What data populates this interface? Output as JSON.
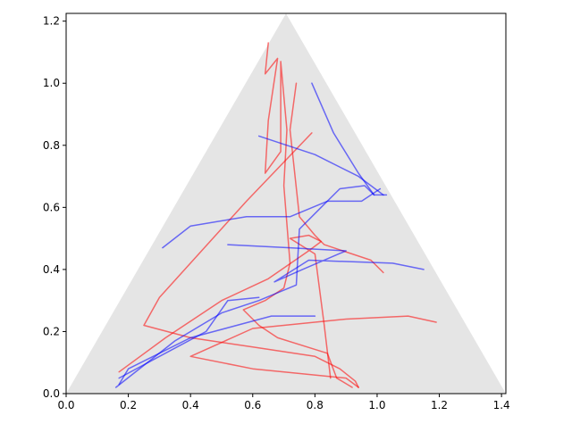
{
  "chart_data": {
    "type": "line",
    "title": "",
    "xlabel": "",
    "ylabel": "",
    "xlim": [
      0.0,
      1.414
    ],
    "ylim": [
      0.0,
      1.225
    ],
    "x_ticks": [
      0.0,
      0.2,
      0.4,
      0.6,
      0.8,
      1.0,
      1.2,
      1.4
    ],
    "x_tick_labels": [
      "0.0",
      "0.2",
      "0.4",
      "0.6",
      "0.8",
      "1.0",
      "1.2",
      "1.4"
    ],
    "y_ticks": [
      0.0,
      0.2,
      0.4,
      0.6,
      0.8,
      1.0,
      1.2
    ],
    "y_tick_labels": [
      "0.0",
      "0.2",
      "0.4",
      "0.6",
      "0.8",
      "1.0",
      "1.2"
    ],
    "grid": false,
    "legend": "none",
    "background_triangle": {
      "vertices": [
        [
          0.0,
          0.0
        ],
        [
          1.414,
          0.0
        ],
        [
          0.707,
          1.2247
        ]
      ],
      "color": "#e5e5e5"
    },
    "series": [
      {
        "color": "#ff0000",
        "opacity": 0.55,
        "points": [
          [
            0.79,
            0.84
          ],
          [
            0.58,
            0.62
          ],
          [
            0.3,
            0.31
          ],
          [
            0.25,
            0.22
          ],
          [
            0.4,
            0.18
          ],
          [
            0.6,
            0.15
          ],
          [
            0.8,
            0.12
          ],
          [
            0.88,
            0.08
          ],
          [
            0.93,
            0.04
          ],
          [
            0.94,
            0.02
          ]
        ]
      },
      {
        "color": "#ff0000",
        "opacity": 0.55,
        "points": [
          [
            0.65,
            1.13
          ],
          [
            0.64,
            1.03
          ],
          [
            0.68,
            1.08
          ],
          [
            0.65,
            0.88
          ],
          [
            0.64,
            0.71
          ],
          [
            0.69,
            0.78
          ],
          [
            0.69,
            1.07
          ],
          [
            0.71,
            0.85
          ],
          [
            0.7,
            0.67
          ],
          [
            0.72,
            0.42
          ],
          [
            0.7,
            0.34
          ],
          [
            0.64,
            0.3
          ],
          [
            0.57,
            0.27
          ],
          [
            0.62,
            0.22
          ],
          [
            0.68,
            0.18
          ],
          [
            0.84,
            0.13
          ],
          [
            0.87,
            0.05
          ],
          [
            0.92,
            0.02
          ]
        ]
      },
      {
        "color": "#ff0000",
        "opacity": 0.55,
        "points": [
          [
            0.74,
            1.0
          ],
          [
            0.72,
            0.85
          ],
          [
            0.75,
            0.57
          ],
          [
            0.8,
            0.51
          ],
          [
            0.83,
            0.48
          ],
          [
            0.98,
            0.43
          ],
          [
            1.02,
            0.39
          ]
        ]
      },
      {
        "color": "#ff0000",
        "opacity": 0.55,
        "points": [
          [
            1.19,
            0.23
          ],
          [
            1.1,
            0.25
          ],
          [
            0.9,
            0.24
          ],
          [
            0.6,
            0.21
          ],
          [
            0.4,
            0.12
          ],
          [
            0.6,
            0.08
          ],
          [
            0.9,
            0.05
          ],
          [
            0.94,
            0.02
          ]
        ]
      },
      {
        "color": "#ff0000",
        "opacity": 0.55,
        "points": [
          [
            0.17,
            0.07
          ],
          [
            0.32,
            0.18
          ],
          [
            0.5,
            0.3
          ],
          [
            0.65,
            0.37
          ],
          [
            0.78,
            0.46
          ],
          [
            0.82,
            0.49
          ],
          [
            0.78,
            0.51
          ],
          [
            0.72,
            0.5
          ],
          [
            0.8,
            0.45
          ],
          [
            0.83,
            0.22
          ],
          [
            0.85,
            0.05
          ]
        ]
      },
      {
        "color": "#0000ff",
        "opacity": 0.55,
        "points": [
          [
            0.79,
            1.0
          ],
          [
            0.86,
            0.84
          ],
          [
            0.94,
            0.71
          ],
          [
            0.99,
            0.64
          ],
          [
            1.03,
            0.64
          ]
        ]
      },
      {
        "color": "#0000ff",
        "opacity": 0.55,
        "points": [
          [
            0.62,
            0.83
          ],
          [
            0.8,
            0.77
          ],
          [
            0.94,
            0.7
          ],
          [
            1.02,
            0.64
          ]
        ]
      },
      {
        "color": "#0000ff",
        "opacity": 0.55,
        "points": [
          [
            0.31,
            0.47
          ],
          [
            0.4,
            0.54
          ],
          [
            0.58,
            0.57
          ],
          [
            0.72,
            0.57
          ],
          [
            0.84,
            0.62
          ],
          [
            0.95,
            0.62
          ],
          [
            1.01,
            0.66
          ]
        ]
      },
      {
        "color": "#0000ff",
        "opacity": 0.55,
        "points": [
          [
            0.17,
            0.05
          ],
          [
            0.3,
            0.12
          ],
          [
            0.45,
            0.2
          ],
          [
            0.52,
            0.3
          ],
          [
            0.62,
            0.31
          ]
        ]
      },
      {
        "color": "#0000ff",
        "opacity": 0.55,
        "points": [
          [
            0.52,
            0.48
          ],
          [
            0.72,
            0.47
          ],
          [
            0.9,
            0.46
          ],
          [
            0.76,
            0.4
          ],
          [
            0.67,
            0.36
          ],
          [
            0.78,
            0.43
          ],
          [
            1.05,
            0.42
          ],
          [
            1.15,
            0.4
          ]
        ]
      },
      {
        "color": "#0000ff",
        "opacity": 0.55,
        "points": [
          [
            0.8,
            0.25
          ],
          [
            0.66,
            0.25
          ],
          [
            0.4,
            0.18
          ],
          [
            0.2,
            0.08
          ],
          [
            0.17,
            0.03
          ]
        ]
      },
      {
        "color": "#0000ff",
        "opacity": 0.55,
        "points": [
          [
            0.16,
            0.02
          ],
          [
            0.35,
            0.17
          ],
          [
            0.5,
            0.26
          ],
          [
            0.62,
            0.3
          ],
          [
            0.74,
            0.35
          ],
          [
            0.75,
            0.53
          ],
          [
            0.82,
            0.6
          ],
          [
            0.88,
            0.66
          ],
          [
            0.96,
            0.67
          ],
          [
            0.99,
            0.64
          ]
        ]
      }
    ]
  }
}
